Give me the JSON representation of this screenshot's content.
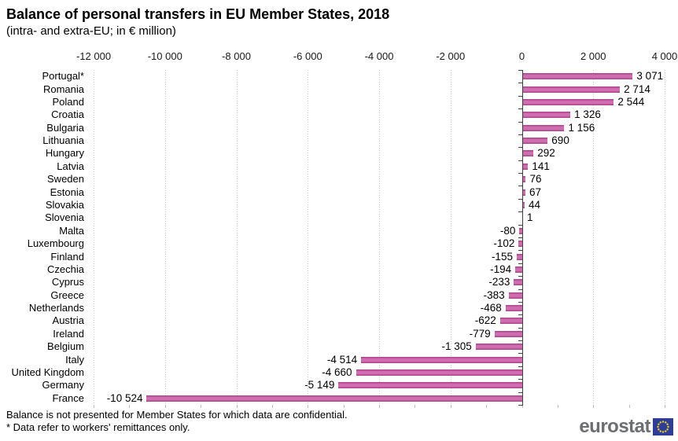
{
  "title": "Balance of personal transfers in EU Member States, 2018",
  "subtitle": "(intra- and extra-EU; in € million)",
  "footnotes": [
    "Balance is not presented for Member States for which data are confidential.",
    "* Data refer to workers' remittances only."
  ],
  "logo": {
    "text": "eurostat"
  },
  "colors": {
    "bar_edge": "#a83e8b",
    "bar_mid": "#d06fb0",
    "gridline": "#c9c9c9",
    "axis": "#3f3f3f",
    "logo_text": "#6d6e71",
    "flag_blue": "#2e3d96",
    "flag_stars": "#f0d11e"
  },
  "chart_data": {
    "type": "bar",
    "orientation": "horizontal",
    "title": "Balance of personal transfers in EU Member States, 2018",
    "subtitle": "(intra- and extra-EU; in € million)",
    "xlabel": "",
    "ylabel": "",
    "xlim": [
      -12000,
      4000
    ],
    "grid": "dotted-vertical",
    "legend": "none",
    "axis_ticks": [
      -12000,
      -10000,
      -8000,
      -6000,
      -4000,
      -2000,
      0,
      2000,
      4000
    ],
    "axis_tick_labels": [
      "-12 000",
      "-10 000",
      "-8 000",
      "-6 000",
      "-4 000",
      "-2 000",
      "0",
      "2 000",
      "4 000"
    ],
    "categories": [
      "Portugal*",
      "Romania",
      "Poland",
      "Croatia",
      "Bulgaria",
      "Lithuania",
      "Hungary",
      "Latvia",
      "Sweden",
      "Estonia",
      "Slovakia",
      "Slovenia",
      "Malta",
      "Luxembourg",
      "Finland",
      "Czechia",
      "Cyprus",
      "Greece",
      "Netherlands",
      "Austria",
      "Ireland",
      "Belgium",
      "Italy",
      "United Kingdom",
      "Germany",
      "France"
    ],
    "values": [
      3071,
      2714,
      2544,
      1326,
      1156,
      690,
      292,
      141,
      76,
      67,
      44,
      1,
      -80,
      -102,
      -155,
      -194,
      -233,
      -383,
      -468,
      -622,
      -779,
      -1305,
      -4514,
      -4660,
      -5149,
      -10524
    ],
    "value_labels": [
      "3 071",
      "2 714",
      "2 544",
      "1 326",
      "1 156",
      "690",
      "292",
      "141",
      "76",
      "67",
      "44",
      "1",
      "-80",
      "-102",
      "-155",
      "-194",
      "-233",
      "-383",
      "-468",
      "-622",
      "-779",
      "-1 305",
      "-4 514",
      "-4 660",
      "-5 149",
      "-10 524"
    ]
  }
}
